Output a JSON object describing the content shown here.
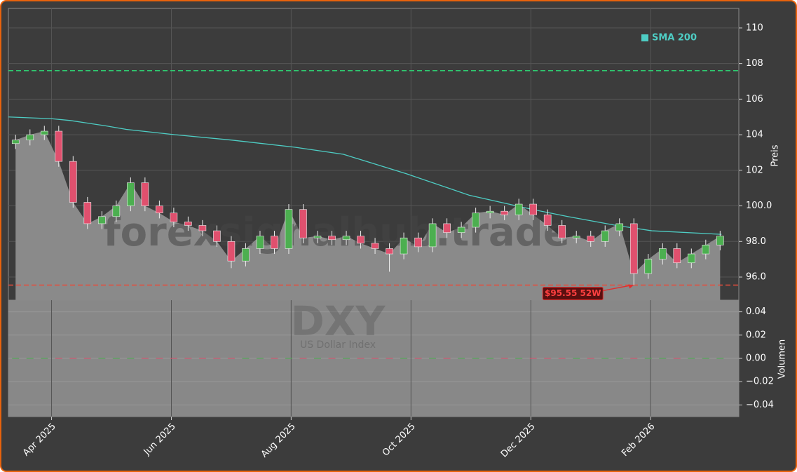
{
  "chart_data": {
    "type": "candlestick",
    "watermark": "forexsignalhub.trade",
    "symbol": "DXY",
    "symbol_name": "US Dollar Index",
    "ylabel": "Preis",
    "y2label": "Volumen",
    "xlim": [
      2025.19,
      2026.206
    ],
    "xticks": [
      {
        "value": 2025.25,
        "label": "Apr 2025"
      },
      {
        "value": 2025.4167,
        "label": "Jun 2025"
      },
      {
        "value": 2025.5833,
        "label": "Aug 2025"
      },
      {
        "value": 2025.75,
        "label": "Oct 2025"
      },
      {
        "value": 2025.9167,
        "label": "Dec 2025"
      },
      {
        "value": 2026.0833,
        "label": "Feb 2026"
      }
    ],
    "ylim": [
      94.7,
      111.1
    ],
    "yticks": [
      {
        "value": 96,
        "label": "96.0"
      },
      {
        "value": 98,
        "label": "98.0"
      },
      {
        "value": 100,
        "label": "100.0"
      },
      102,
      104,
      106,
      108,
      110
    ],
    "y2lim": [
      -0.05,
      0.05
    ],
    "y2ticks": [
      {
        "value": -0.04,
        "label": "−0.04"
      },
      {
        "value": -0.02,
        "label": "−0.02"
      },
      {
        "value": 0,
        "label": "0.00"
      },
      0.02,
      0.04
    ],
    "grid": true,
    "legend": "upper right",
    "up_color": "#4caf50",
    "down_color": "#e0506e",
    "x": [
      2025.2,
      2025.22,
      2025.24,
      2025.26,
      2025.28,
      2025.3,
      2025.32,
      2025.34,
      2025.36,
      2025.38,
      2025.4,
      2025.42,
      2025.44,
      2025.46,
      2025.48,
      2025.5,
      2025.52,
      2025.54,
      2025.56,
      2025.58,
      2025.6,
      2025.62,
      2025.64,
      2025.66,
      2025.68,
      2025.7,
      2025.72,
      2025.74,
      2025.76,
      2025.78,
      2025.8,
      2025.82,
      2025.84,
      2025.86,
      2025.88,
      2025.9,
      2025.92,
      2025.94,
      2025.96,
      2025.98,
      2026.0,
      2026.02,
      2026.04,
      2026.06,
      2026.08,
      2026.1,
      2026.12,
      2026.14,
      2026.16,
      2026.18
    ],
    "open": [
      103.5,
      103.7,
      104.0,
      104.2,
      102.5,
      100.2,
      99.0,
      99.4,
      100.0,
      101.3,
      100.0,
      99.6,
      99.1,
      98.9,
      98.6,
      98.0,
      96.9,
      97.6,
      98.3,
      97.6,
      99.8,
      98.2,
      98.3,
      98.1,
      98.3,
      97.9,
      97.6,
      97.3,
      98.2,
      97.7,
      99.0,
      98.5,
      98.8,
      99.6,
      99.7,
      99.5,
      100.1,
      99.5,
      98.9,
      98.2,
      98.3,
      98.0,
      98.6,
      99.0,
      96.2,
      97.0,
      97.6,
      96.8,
      97.3,
      97.8
    ],
    "high": [
      104.0,
      104.3,
      104.5,
      104.5,
      102.8,
      100.5,
      99.7,
      100.3,
      101.6,
      101.6,
      100.3,
      99.9,
      99.4,
      99.2,
      98.9,
      98.3,
      97.9,
      98.6,
      98.6,
      100.1,
      100.1,
      98.6,
      98.6,
      98.6,
      98.6,
      98.2,
      97.9,
      98.5,
      98.5,
      99.3,
      99.3,
      99.1,
      99.9,
      100.0,
      100.0,
      100.4,
      100.4,
      99.8,
      99.2,
      98.6,
      98.6,
      98.9,
      99.3,
      99.3,
      97.3,
      97.9,
      97.9,
      97.6,
      98.1,
      98.6
    ],
    "low": [
      103.2,
      103.4,
      103.7,
      102.2,
      99.9,
      98.7,
      98.7,
      99.1,
      99.7,
      99.7,
      99.3,
      98.8,
      98.6,
      98.3,
      97.7,
      96.5,
      96.6,
      97.3,
      97.3,
      97.3,
      97.9,
      97.9,
      97.8,
      97.8,
      97.6,
      97.3,
      96.3,
      97.0,
      97.4,
      97.4,
      98.2,
      98.2,
      98.5,
      99.3,
      99.2,
      99.2,
      99.2,
      98.6,
      97.9,
      97.9,
      97.7,
      97.7,
      98.3,
      95.55,
      95.9,
      96.7,
      96.5,
      96.5,
      97.0,
      97.5
    ],
    "close": [
      103.7,
      104.0,
      104.2,
      102.5,
      100.2,
      99.0,
      99.4,
      100.0,
      101.3,
      100.0,
      99.6,
      99.1,
      98.9,
      98.6,
      98.0,
      96.9,
      97.6,
      98.3,
      97.6,
      99.8,
      98.2,
      98.3,
      98.1,
      98.3,
      97.9,
      97.6,
      97.3,
      98.2,
      97.7,
      99.0,
      98.5,
      98.8,
      99.6,
      99.7,
      99.5,
      100.1,
      99.5,
      98.9,
      98.2,
      98.3,
      98.0,
      98.6,
      99.0,
      96.2,
      97.0,
      97.6,
      96.8,
      97.3,
      97.8,
      98.3
    ],
    "volume": [
      0,
      0,
      0,
      0,
      0,
      0,
      0,
      0,
      0,
      0,
      0,
      0,
      0,
      0,
      0,
      0,
      0,
      0,
      0,
      0,
      0,
      0,
      0,
      0,
      0,
      0,
      0,
      0,
      0,
      0,
      0,
      0,
      0,
      0,
      0,
      0,
      0,
      0,
      0,
      0,
      0,
      0,
      0,
      0,
      0,
      0,
      0,
      0,
      0,
      0
    ],
    "series": [
      {
        "name": "SMA 200",
        "color": "#4ecdc4",
        "x": [
          2025.19,
          2025.25,
          2025.276,
          2025.325,
          2025.354,
          2025.422,
          2025.5,
          2025.588,
          2025.656,
          2025.744,
          2025.831,
          2025.919,
          2025.968,
          2026.036,
          2026.085,
          2026.182
        ],
        "values": [
          105.0,
          104.9,
          104.8,
          104.5,
          104.3,
          104.0,
          103.7,
          103.3,
          102.9,
          101.8,
          100.6,
          99.8,
          99.4,
          98.9,
          98.6,
          98.4
        ]
      }
    ],
    "hlines": [
      {
        "value": 107.6,
        "color": "#2ecc71"
      },
      {
        "value": 95.55,
        "color": "#e74c3c"
      }
    ],
    "annotation": {
      "text": "$95.55 52W",
      "x": 2026.06,
      "y": 95.55
    }
  }
}
